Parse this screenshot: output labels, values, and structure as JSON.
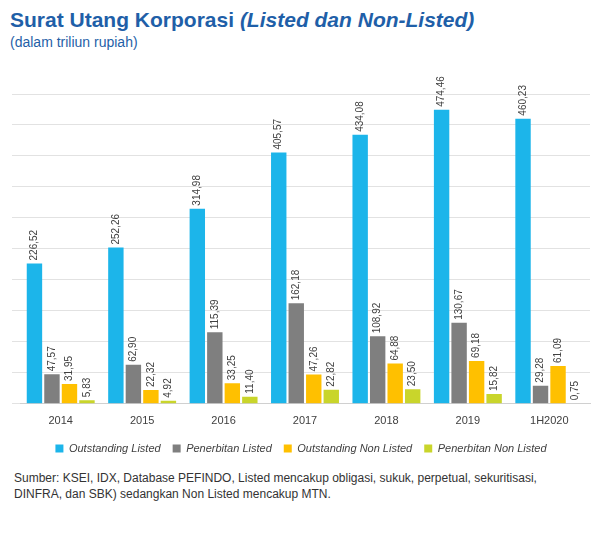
{
  "chart_data": {
    "type": "bar",
    "title": "Surat Utang Korporasi (Listed dan Non-Listed)",
    "subtitle": "(dalam triliun rupiah)",
    "note": "Sumber: KSEI, IDX, Database PEFINDO, Listed mencakup obligasi, sukuk, perpetual, sekuritisasi, DINFRA, dan SBK) sedangkan Non Listed mencakup MTN.",
    "categories": [
      "2014",
      "2015",
      "2016",
      "2017",
      "2018",
      "2019",
      "1H2020"
    ],
    "series": [
      {
        "name": "Outstanding Listed",
        "color": "#1cb5ea",
        "values": [
          226.52,
          252.26,
          314.98,
          405.57,
          434.08,
          474.46,
          460.23
        ],
        "value_labels": [
          "226,52",
          "252,26",
          "314,98",
          "405,57",
          "434,08",
          "474,46",
          "460,23"
        ]
      },
      {
        "name": "Penerbitan Listed",
        "color": "#7f7f7f",
        "values": [
          47.57,
          62.9,
          115.39,
          162.18,
          108.92,
          130.67,
          29.28
        ],
        "value_labels": [
          "47,57",
          "62,90",
          "115,39",
          "162,18",
          "108,92",
          "130,67",
          "29,28"
        ]
      },
      {
        "name": "Outstanding Non Listed",
        "color": "#ffc000",
        "values": [
          31.95,
          22.32,
          33.25,
          47.26,
          64.88,
          69.18,
          61.09
        ],
        "value_labels": [
          "31,95",
          "22,32",
          "33,25",
          "47,26",
          "64,88",
          "69,18",
          "61,09"
        ]
      },
      {
        "name": "Penerbitan Non Listed",
        "color": "#c9d52b",
        "values": [
          5.83,
          4.92,
          11.4,
          22.82,
          23.5,
          15.82,
          0.75
        ],
        "value_labels": [
          "5,83",
          "4,92",
          "11,40",
          "22,82",
          "23,50",
          "15,82",
          "0,75"
        ]
      }
    ],
    "ylim": [
      0,
      500
    ],
    "yticks": [
      0,
      50,
      100,
      150,
      200,
      250,
      300,
      350,
      400,
      450,
      500
    ],
    "grid": true,
    "legend": "bottom",
    "data_labels": true,
    "tick_labels": "x"
  }
}
